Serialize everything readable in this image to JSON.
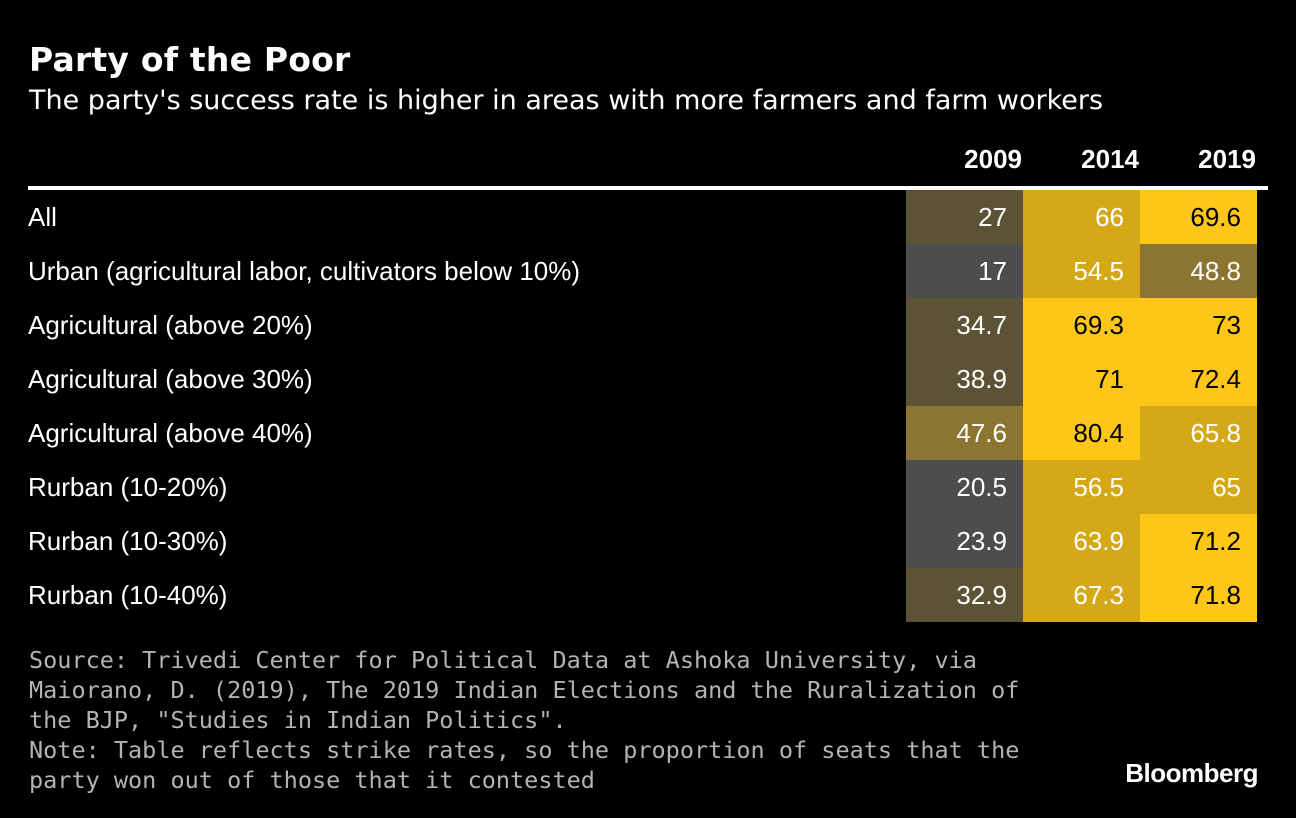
{
  "title": "Party of the Poor",
  "subtitle": "The party's success rate is higher in areas with more farmers and farm workers",
  "chart_data": {
    "type": "table",
    "columns": [
      "2009",
      "2014",
      "2019"
    ],
    "rows": [
      {
        "label": "All",
        "values": [
          27,
          66,
          69.6
        ],
        "display": [
          "27",
          "66",
          "69.6"
        ]
      },
      {
        "label": "Urban (agricultural labor, cultivators below 10%)",
        "values": [
          17,
          54.5,
          48.8
        ],
        "display": [
          "17",
          "54.5",
          "48.8"
        ]
      },
      {
        "label": "Agricultural (above 20%)",
        "values": [
          34.7,
          69.3,
          73
        ],
        "display": [
          "34.7",
          "69.3",
          "73"
        ]
      },
      {
        "label": "Agricultural (above 30%)",
        "values": [
          38.9,
          71,
          72.4
        ],
        "display": [
          "38.9",
          "71",
          "72.4"
        ]
      },
      {
        "label": "Agricultural (above 40%)",
        "values": [
          47.6,
          80.4,
          65.8
        ],
        "display": [
          "47.6",
          "80.4",
          "65.8"
        ]
      },
      {
        "label": "Rurban (10-20%)",
        "values": [
          20.5,
          56.5,
          65
        ],
        "display": [
          "20.5",
          "56.5",
          "65"
        ]
      },
      {
        "label": "Rurban (10-30%)",
        "values": [
          23.9,
          63.9,
          71.2
        ],
        "display": [
          "23.9",
          "63.9",
          "71.2"
        ]
      },
      {
        "label": "Rurban (10-40%)",
        "values": [
          32.9,
          67.3,
          71.8
        ],
        "display": [
          "32.9",
          "67.3",
          "71.8"
        ]
      }
    ],
    "heat_colors": {
      "low": "#4d4d4d",
      "mid_low": "#5c5236",
      "mid": "#8c7530",
      "mid_high": "#d4a817",
      "high": "#ffc61a"
    }
  },
  "source_lines": [
    "Source: Trivedi Center for Political Data at Ashoka University, via Maiorano, D. (2019), The 2019 Indian Elections and the Ruralization of the BJP, \"Studies in Indian Politics\".",
    "Note: Table reflects strike rates, so the proportion of seats that the party won out of those that it contested"
  ],
  "brand": "Bloomberg"
}
